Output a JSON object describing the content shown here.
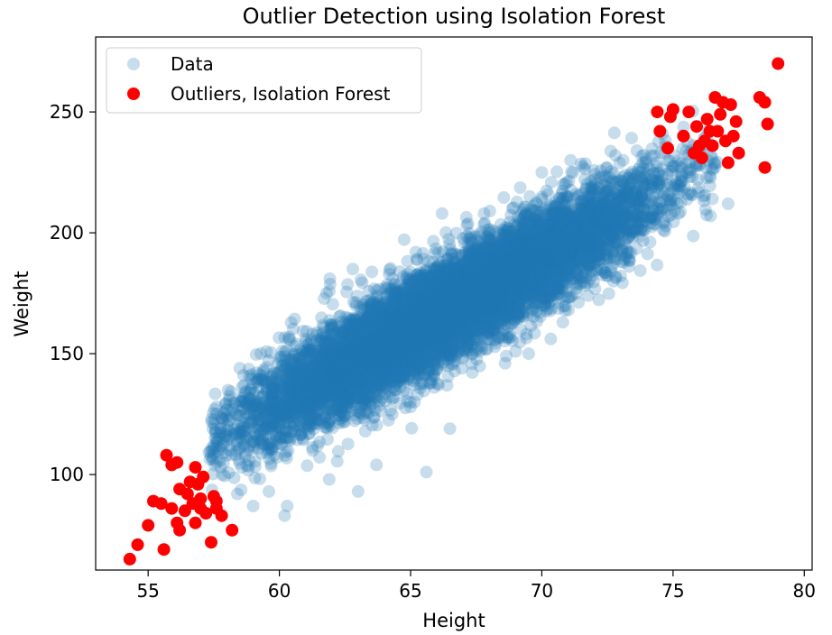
{
  "chart_data": {
    "type": "scatter",
    "title": "Outlier Detection using Isolation Forest",
    "xlabel": "Height",
    "ylabel": "Weight",
    "xlim": [
      53,
      80.3
    ],
    "ylim": [
      60.5,
      281
    ],
    "xticks": [
      55,
      60,
      65,
      70,
      75,
      80
    ],
    "yticks": [
      100,
      150,
      200,
      250
    ],
    "grid": false,
    "legend_position": "top-left",
    "series": [
      {
        "name": "Data",
        "color": "#1f77b4",
        "alpha": 0.25,
        "distribution": {
          "count": 10000,
          "x_mean": 66.4,
          "x_std": 3.85,
          "slope": 5.96,
          "intercept": -227.3,
          "residual_std": 10.2
        },
        "points": [
          [
            62.8,
            185
          ],
          [
            63.0,
            93
          ],
          [
            65.6,
            101
          ],
          [
            61.8,
            175
          ],
          [
            60.2,
            83
          ],
          [
            66.2,
            208
          ],
          [
            67.0,
            165
          ],
          [
            70.8,
            163
          ],
          [
            69.5,
            150
          ],
          [
            66.5,
            119
          ],
          [
            68.6,
            146
          ],
          [
            58.9,
            126
          ],
          [
            59.6,
            93
          ],
          [
            60.3,
            87
          ],
          [
            77.1,
            212
          ],
          [
            76.5,
            214
          ],
          [
            74.6,
            241
          ],
          [
            73.1,
            230
          ],
          [
            72.2,
            223
          ],
          [
            70.0,
            225
          ],
          [
            59.0,
            87
          ],
          [
            58.4,
            92
          ],
          [
            61.9,
            98
          ],
          [
            63.7,
            104
          ],
          [
            62.4,
            155
          ],
          [
            61.0,
            156
          ],
          [
            60.1,
            145
          ],
          [
            65.2,
            192
          ],
          [
            67.8,
            208
          ],
          [
            71.1,
            230
          ],
          [
            72.8,
            232
          ],
          [
            74.4,
            219
          ],
          [
            75.3,
            221
          ],
          [
            73.2,
            190
          ],
          [
            72.1,
            196
          ],
          [
            57.8,
            112
          ],
          [
            57.6,
            105
          ],
          [
            58.7,
            118
          ],
          [
            64.3,
            125
          ],
          [
            65.9,
            136
          ]
        ]
      },
      {
        "name": "Outliers, Isolation Forest",
        "color": "#ff0000",
        "alpha": 1,
        "points": [
          [
            54.3,
            65
          ],
          [
            54.6,
            71
          ],
          [
            55.0,
            79
          ],
          [
            55.2,
            89
          ],
          [
            55.5,
            88
          ],
          [
            55.6,
            69
          ],
          [
            55.7,
            108
          ],
          [
            55.9,
            104
          ],
          [
            56.1,
            105
          ],
          [
            55.9,
            86
          ],
          [
            56.2,
            94
          ],
          [
            56.1,
            80
          ],
          [
            56.2,
            77
          ],
          [
            56.4,
            85
          ],
          [
            56.5,
            92
          ],
          [
            56.6,
            97
          ],
          [
            56.7,
            88
          ],
          [
            56.8,
            103
          ],
          [
            56.8,
            80
          ],
          [
            56.9,
            96
          ],
          [
            57.0,
            90
          ],
          [
            57.0,
            86
          ],
          [
            57.1,
            99
          ],
          [
            57.2,
            84
          ],
          [
            57.4,
            72
          ],
          [
            57.5,
            91
          ],
          [
            57.6,
            86
          ],
          [
            57.6,
            89
          ],
          [
            57.8,
            83
          ],
          [
            58.2,
            77
          ],
          [
            74.4,
            250
          ],
          [
            74.5,
            242
          ],
          [
            74.8,
            235
          ],
          [
            74.9,
            248
          ],
          [
            75.0,
            251
          ],
          [
            75.4,
            240
          ],
          [
            75.6,
            250
          ],
          [
            75.8,
            233
          ],
          [
            75.9,
            244
          ],
          [
            76.0,
            236
          ],
          [
            76.1,
            231
          ],
          [
            76.2,
            238
          ],
          [
            76.3,
            247
          ],
          [
            76.4,
            242
          ],
          [
            76.5,
            236
          ],
          [
            76.6,
            256
          ],
          [
            76.7,
            242
          ],
          [
            76.8,
            249
          ],
          [
            76.9,
            254
          ],
          [
            77.0,
            238
          ],
          [
            77.1,
            229
          ],
          [
            77.2,
            253
          ],
          [
            77.3,
            240
          ],
          [
            77.4,
            246
          ],
          [
            77.5,
            233
          ],
          [
            78.3,
            256
          ],
          [
            78.5,
            254
          ],
          [
            78.6,
            245
          ],
          [
            78.5,
            227
          ],
          [
            79.0,
            270
          ]
        ]
      }
    ]
  }
}
